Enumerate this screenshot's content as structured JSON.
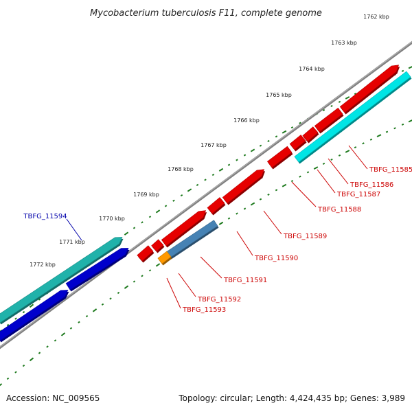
{
  "title": "Mycobacterium tuberculosis F11, complete genome",
  "scale": {
    "ticks": [
      {
        "label": "1762 kbp"
      },
      {
        "label": "1763 kbp"
      },
      {
        "label": "1764 kbp"
      },
      {
        "label": "1765 kbp"
      },
      {
        "label": "1766 kbp"
      },
      {
        "label": "1767 kbp"
      },
      {
        "label": "1768 kbp"
      },
      {
        "label": "1769 kbp"
      },
      {
        "label": "1770 kbp"
      },
      {
        "label": "1771 kbp"
      },
      {
        "label": "1772 kbp"
      }
    ]
  },
  "colors": {
    "tick_green": "#1e7a1e",
    "backbone": "#808080",
    "gene_red": "#e60000",
    "gene_blue": "#0000cc",
    "gene_teal": "#20b2aa",
    "gene_cyan": "#00e5e5",
    "gene_steel": "#4682b4",
    "gene_orange": "#ff9900",
    "label_red": "#cc0000",
    "label_blue": "#0000aa"
  },
  "gene_labels": [
    {
      "text": "TBFG_11585",
      "color": "red"
    },
    {
      "text": "TBFG_11586",
      "color": "red"
    },
    {
      "text": "TBFG_11587",
      "color": "red"
    },
    {
      "text": "TBFG_11588",
      "color": "red"
    },
    {
      "text": "TBFG_11589",
      "color": "red"
    },
    {
      "text": "TBFG_11590",
      "color": "red"
    },
    {
      "text": "TBFG_11591",
      "color": "red"
    },
    {
      "text": "TBFG_11592",
      "color": "red"
    },
    {
      "text": "TBFG_11593",
      "color": "red"
    },
    {
      "text": "TBFG_11594",
      "color": "blue"
    }
  ],
  "footer": {
    "accession": "Accession: NC_009565",
    "summary": "Topology: circular; Length: 4,424,435 bp; Genes: 3,989"
  }
}
